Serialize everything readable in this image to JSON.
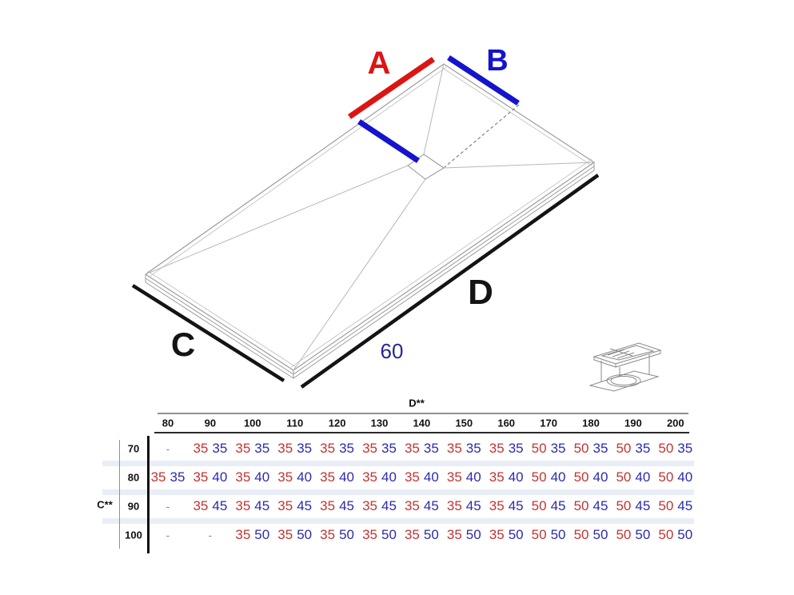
{
  "diagram": {
    "labels": {
      "a": "A",
      "b": "B",
      "c": "C",
      "d": "D",
      "width_note": "60"
    },
    "colors": {
      "red": "#dd1414",
      "blue": "#1414cc",
      "line_black": "#141414",
      "note_blue": "#28288f",
      "outline_gray": "#9c9c9c"
    }
  },
  "table": {
    "col_axis_label": "D**",
    "row_axis_label": "C**",
    "columns": [
      "80",
      "90",
      "100",
      "110",
      "120",
      "130",
      "140",
      "150",
      "160",
      "170",
      "180",
      "190",
      "200"
    ],
    "value_colors": {
      "first": "#c13434",
      "second": "#2b2bad"
    },
    "rows": [
      {
        "label": "70",
        "cells": [
          "-",
          [
            "35",
            "35"
          ],
          [
            "35",
            "35"
          ],
          [
            "35",
            "35"
          ],
          [
            "35",
            "35"
          ],
          [
            "35",
            "35"
          ],
          [
            "35",
            "35"
          ],
          [
            "35",
            "35"
          ],
          [
            "35",
            "35"
          ],
          [
            "50",
            "35"
          ],
          [
            "50",
            "35"
          ],
          [
            "50",
            "35"
          ],
          [
            "50",
            "35"
          ]
        ]
      },
      {
        "label": "80",
        "cells": [
          [
            "35",
            "35"
          ],
          [
            "35",
            "40"
          ],
          [
            "35",
            "40"
          ],
          [
            "35",
            "40"
          ],
          [
            "35",
            "40"
          ],
          [
            "35",
            "40"
          ],
          [
            "35",
            "40"
          ],
          [
            "35",
            "40"
          ],
          [
            "35",
            "40"
          ],
          [
            "50",
            "40"
          ],
          [
            "50",
            "40"
          ],
          [
            "50",
            "40"
          ],
          [
            "50",
            "40"
          ]
        ]
      },
      {
        "label": "90",
        "cells": [
          "-",
          [
            "35",
            "45"
          ],
          [
            "35",
            "45"
          ],
          [
            "35",
            "45"
          ],
          [
            "35",
            "45"
          ],
          [
            "35",
            "45"
          ],
          [
            "35",
            "45"
          ],
          [
            "35",
            "45"
          ],
          [
            "35",
            "45"
          ],
          [
            "50",
            "45"
          ],
          [
            "50",
            "45"
          ],
          [
            "50",
            "45"
          ],
          [
            "50",
            "45"
          ]
        ]
      },
      {
        "label": "100",
        "cells": [
          "-",
          "-",
          [
            "35",
            "50"
          ],
          [
            "35",
            "50"
          ],
          [
            "35",
            "50"
          ],
          [
            "35",
            "50"
          ],
          [
            "35",
            "50"
          ],
          [
            "35",
            "50"
          ],
          [
            "35",
            "50"
          ],
          [
            "50",
            "50"
          ],
          [
            "50",
            "50"
          ],
          [
            "50",
            "50"
          ],
          [
            "50",
            "50"
          ]
        ]
      }
    ]
  }
}
